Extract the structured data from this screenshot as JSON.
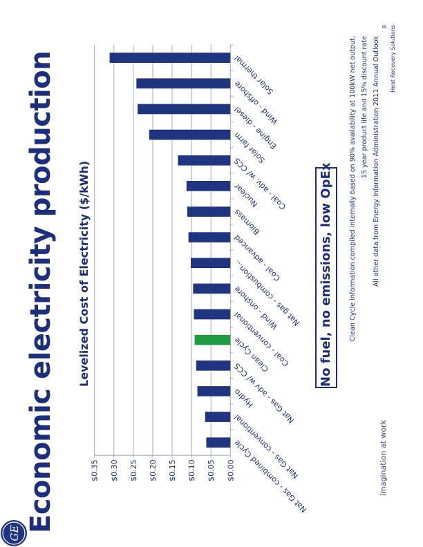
{
  "header": {
    "title": "Economic electricity production"
  },
  "callout": "No fuel, no emissions, low OpEx",
  "footnotes": [
    "Clean Cycle information compiled internally based on 90% availability at 100kW net output,",
    "15 year product life and 15% discount rate",
    "All other data from Energy Information Administration  2011 Annual Outlook"
  ],
  "footer": {
    "page_number": "8",
    "brand": "Heat Recovery Solutions",
    "tagline": "imagination at work",
    "logo_text": "GE"
  },
  "colors": {
    "bar": "#1f3580",
    "highlight": "#1f9c3f",
    "text": "#1b2f7c",
    "grid": "#a5a8c4"
  },
  "chart_data": {
    "type": "bar",
    "title": "Levelized Cost of Electricity ($/kWh)",
    "categories": [
      "Nat Gas - combined Cycle",
      "Nat Gas - conventional",
      "Hydro",
      "Nat Gas - adv w/ CCS",
      "Clean Cycle",
      "Coal - conventional",
      "Wind - onshore",
      "Nat gas - combustion...",
      "Coal - advanced",
      "Biomass",
      "Nuclear",
      "Coal - adv. w/ CCS",
      "Solar farm",
      "Engine - diesel",
      "Wind - offshore",
      "Solar thermal"
    ],
    "values": [
      0.062,
      0.065,
      0.085,
      0.088,
      0.092,
      0.094,
      0.096,
      0.102,
      0.108,
      0.111,
      0.113,
      0.135,
      0.209,
      0.239,
      0.242,
      0.311
    ],
    "highlight": "Clean Cycle",
    "ylim": [
      0,
      0.35
    ],
    "yticks": [
      "$0.00",
      "$0.05",
      "$0.10",
      "$0.15",
      "$0.20",
      "$0.25",
      "$0.30",
      "$0.35"
    ],
    "grid": true,
    "legend": "none"
  }
}
